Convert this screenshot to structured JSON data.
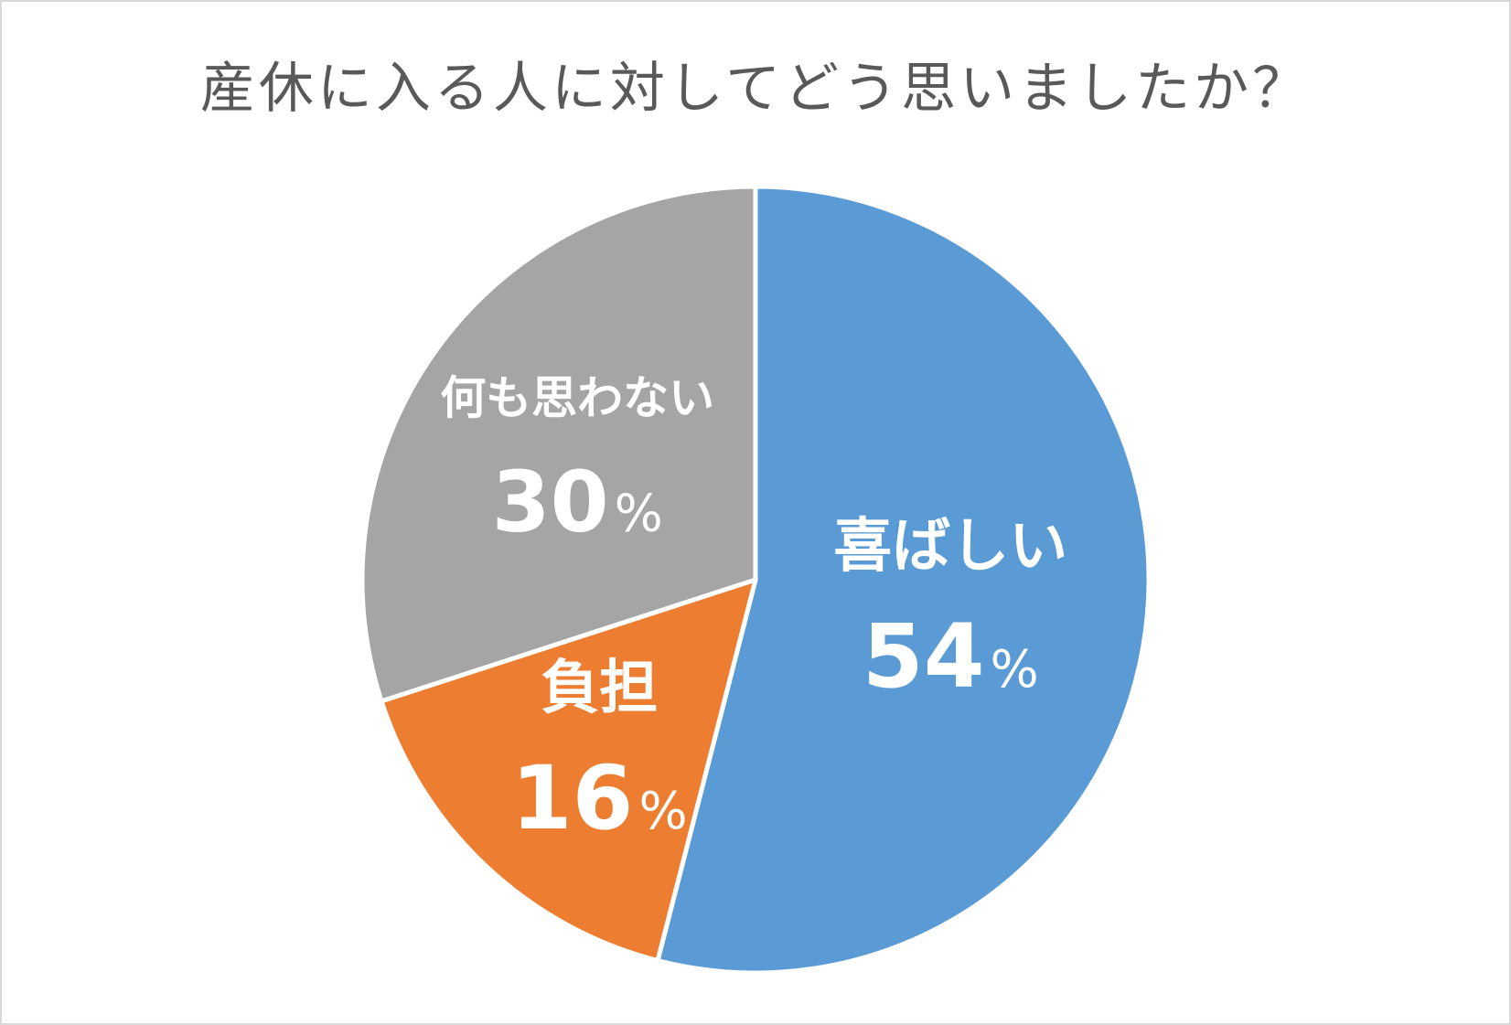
{
  "chart_data": {
    "type": "pie",
    "title": "産休に入る人に対してどう思いましたか？",
    "slices": [
      {
        "label": "喜ばしい",
        "value": 54,
        "value_text": "54",
        "percent_sign": "%",
        "color": "#5b9bd5"
      },
      {
        "label": "負担",
        "value": 16,
        "value_text": "16",
        "percent_sign": "%",
        "color": "#ed7d31"
      },
      {
        "label": "何も思わない",
        "value": 30,
        "value_text": "30",
        "percent_sign": "%",
        "color": "#a5a5a5"
      }
    ],
    "start": "12 o'clock",
    "direction": "clockwise",
    "legend": "none"
  }
}
